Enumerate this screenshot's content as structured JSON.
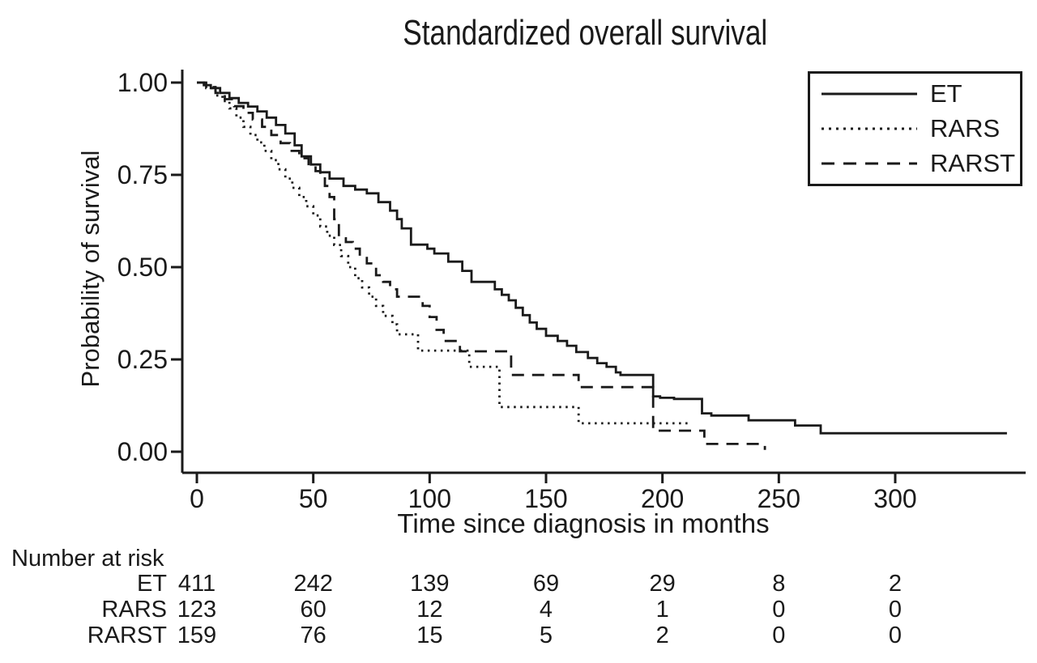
{
  "title": "Standardized overall survival",
  "colors": {
    "foreground": "#1a1a1a",
    "background": "#ffffff"
  },
  "chart_data": {
    "type": "line",
    "subtype": "kaplan-meier-step-curves",
    "title": "Standardized overall survival",
    "xlabel": "Time since diagnosis in months",
    "ylabel": "Probability of survival",
    "xlim": [
      0,
      355
    ],
    "ylim": [
      0.0,
      1.0
    ],
    "grid": false,
    "legend_position": "top-right",
    "x_ticks": [
      {
        "value": 0,
        "label": "0"
      },
      {
        "value": 50,
        "label": "50"
      },
      {
        "value": 100,
        "label": "100"
      },
      {
        "value": 150,
        "label": "150"
      },
      {
        "value": 200,
        "label": "200"
      },
      {
        "value": 250,
        "label": "250"
      },
      {
        "value": 300,
        "label": "300"
      }
    ],
    "y_ticks": [
      {
        "value": 1.0,
        "label": "1.00"
      },
      {
        "value": 0.75,
        "label": "0.75"
      },
      {
        "value": 0.5,
        "label": "0.50"
      },
      {
        "value": 0.25,
        "label": "0.25"
      },
      {
        "value": 0.0,
        "label": "0.00"
      }
    ],
    "series": [
      {
        "name": "ET",
        "line_style": "solid",
        "color": "#1a1a1a",
        "steps": [
          [
            0,
            1.0
          ],
          [
            3,
            0.993
          ],
          [
            6,
            0.985
          ],
          [
            10,
            0.972
          ],
          [
            14,
            0.958
          ],
          [
            18,
            0.945
          ],
          [
            22,
            0.935
          ],
          [
            26,
            0.922
          ],
          [
            30,
            0.905
          ],
          [
            34,
            0.885
          ],
          [
            38,
            0.862
          ],
          [
            42,
            0.83
          ],
          [
            45,
            0.8
          ],
          [
            49,
            0.778
          ],
          [
            53,
            0.757
          ],
          [
            57,
            0.74
          ],
          [
            63,
            0.72
          ],
          [
            68,
            0.71
          ],
          [
            73,
            0.7
          ],
          [
            78,
            0.676
          ],
          [
            83,
            0.653
          ],
          [
            86,
            0.63
          ],
          [
            88,
            0.605
          ],
          [
            92,
            0.561
          ],
          [
            99,
            0.55
          ],
          [
            102,
            0.537
          ],
          [
            108,
            0.515
          ],
          [
            114,
            0.49
          ],
          [
            118,
            0.46
          ],
          [
            128,
            0.44
          ],
          [
            131,
            0.425
          ],
          [
            134,
            0.41
          ],
          [
            137,
            0.39
          ],
          [
            140,
            0.37
          ],
          [
            143,
            0.35
          ],
          [
            146,
            0.333
          ],
          [
            150,
            0.314
          ],
          [
            155,
            0.3
          ],
          [
            159,
            0.287
          ],
          [
            163,
            0.27
          ],
          [
            168,
            0.254
          ],
          [
            172,
            0.24
          ],
          [
            176,
            0.23
          ],
          [
            180,
            0.215
          ],
          [
            182,
            0.208
          ],
          [
            196,
            0.15
          ],
          [
            199,
            0.146
          ],
          [
            205,
            0.143
          ],
          [
            217,
            0.104
          ],
          [
            221,
            0.098
          ],
          [
            237,
            0.085
          ],
          [
            257,
            0.071
          ],
          [
            268,
            0.05
          ],
          [
            348,
            0.05
          ]
        ]
      },
      {
        "name": "RARS",
        "line_style": "dotted",
        "color": "#1a1a1a",
        "steps": [
          [
            0,
            1.0
          ],
          [
            4,
            0.985
          ],
          [
            8,
            0.965
          ],
          [
            11,
            0.95
          ],
          [
            14,
            0.93
          ],
          [
            17,
            0.905
          ],
          [
            20,
            0.88
          ],
          [
            23,
            0.858
          ],
          [
            26,
            0.838
          ],
          [
            29,
            0.815
          ],
          [
            32,
            0.79
          ],
          [
            35,
            0.765
          ],
          [
            38,
            0.74
          ],
          [
            41,
            0.715
          ],
          [
            44,
            0.69
          ],
          [
            47,
            0.665
          ],
          [
            50,
            0.64
          ],
          [
            53,
            0.61
          ],
          [
            56,
            0.585
          ],
          [
            59,
            0.56
          ],
          [
            62,
            0.53
          ],
          [
            65,
            0.5
          ],
          [
            68,
            0.47
          ],
          [
            71,
            0.445
          ],
          [
            74,
            0.42
          ],
          [
            77,
            0.395
          ],
          [
            80,
            0.368
          ],
          [
            84,
            0.345
          ],
          [
            86,
            0.318
          ],
          [
            95,
            0.274
          ],
          [
            117,
            0.23
          ],
          [
            130,
            0.121
          ],
          [
            164,
            0.077
          ],
          [
            212,
            0.077
          ]
        ]
      },
      {
        "name": "RARST",
        "line_style": "dashed",
        "color": "#1a1a1a",
        "steps": [
          [
            0,
            1.0
          ],
          [
            4,
            0.988
          ],
          [
            8,
            0.972
          ],
          [
            12,
            0.955
          ],
          [
            16,
            0.936
          ],
          [
            20,
            0.918
          ],
          [
            24,
            0.9
          ],
          [
            28,
            0.88
          ],
          [
            32,
            0.858
          ],
          [
            36,
            0.836
          ],
          [
            40,
            0.815
          ],
          [
            44,
            0.795
          ],
          [
            48,
            0.775
          ],
          [
            51,
            0.76
          ],
          [
            53,
            0.746
          ],
          [
            55,
            0.72
          ],
          [
            57,
            0.69
          ],
          [
            59,
            0.63
          ],
          [
            61,
            0.578
          ],
          [
            64,
            0.568
          ],
          [
            67,
            0.55
          ],
          [
            70,
            0.53
          ],
          [
            73,
            0.51
          ],
          [
            77,
            0.478
          ],
          [
            80,
            0.46
          ],
          [
            83,
            0.44
          ],
          [
            86,
            0.42
          ],
          [
            97,
            0.395
          ],
          [
            100,
            0.365
          ],
          [
            103,
            0.33
          ],
          [
            106,
            0.3
          ],
          [
            113,
            0.272
          ],
          [
            135,
            0.208
          ],
          [
            164,
            0.175
          ],
          [
            196,
            0.057
          ],
          [
            218,
            0.021
          ],
          [
            244,
            0.005
          ]
        ]
      }
    ]
  },
  "risk_table": {
    "heading": "Number at risk",
    "time_points": [
      0,
      50,
      100,
      150,
      200,
      250,
      300
    ],
    "rows": [
      {
        "label": "ET",
        "values": [
          "411",
          "242",
          "139",
          "69",
          "29",
          "8",
          "2"
        ]
      },
      {
        "label": "RARS",
        "values": [
          "123",
          "60",
          "12",
          "4",
          "1",
          "0",
          "0"
        ]
      },
      {
        "label": "RARST",
        "values": [
          "159",
          "76",
          "15",
          "5",
          "2",
          "0",
          "0"
        ]
      }
    ]
  }
}
